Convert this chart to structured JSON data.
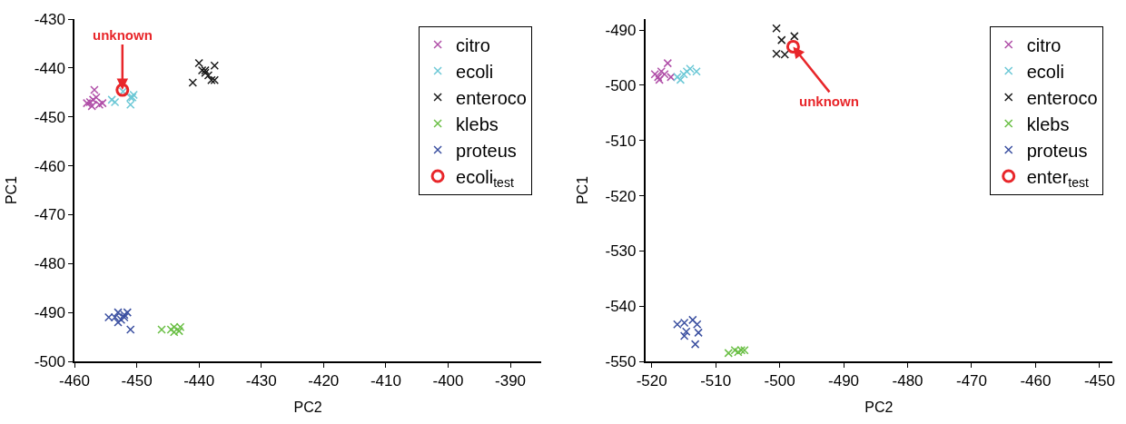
{
  "chart_data": [
    {
      "type": "scatter",
      "xlabel": "PC2",
      "ylabel": "PC1",
      "xlim": [
        -460,
        -385
      ],
      "ylim": [
        -500,
        -430
      ],
      "xticks": [
        -460,
        -450,
        -440,
        -430,
        -420,
        -410,
        -400,
        -390
      ],
      "yticks": [
        -500,
        -490,
        -480,
        -470,
        -460,
        -450,
        -440,
        -430
      ],
      "legend": "top right",
      "annotations": [
        {
          "text": "unknown",
          "x": -452.3,
          "y": -444.5
        }
      ],
      "series": [
        {
          "name": "citro",
          "color": "#b04fa8",
          "marker": "cross",
          "x": [
            -457.5,
            -457,
            -456.8,
            -456,
            -455.5,
            -457.2,
            -456.5,
            -458
          ],
          "values": [
            -447,
            -446.5,
            -444.5,
            -447.5,
            -447.2,
            -447.8,
            -446,
            -447.2
          ]
        },
        {
          "name": "ecoli",
          "color": "#6cc8d6",
          "marker": "cross",
          "x": [
            -454,
            -453.5,
            -451,
            -450.5,
            -451,
            -452.2,
            -450.7
          ],
          "values": [
            -446.5,
            -447,
            -447.5,
            -445.5,
            -446,
            -444.8,
            -446
          ]
        },
        {
          "name": "enteroco",
          "color": "#1a1a1a",
          "marker": "cross",
          "x": [
            -441,
            -440,
            -439.5,
            -439,
            -438.5,
            -437.5,
            -438,
            -437.5,
            -439
          ],
          "values": [
            -443,
            -439,
            -440.5,
            -441,
            -441.5,
            -439.5,
            -442.5,
            -442.5,
            -440.5
          ]
        },
        {
          "name": "klebs",
          "color": "#6abf45",
          "marker": "cross",
          "x": [
            -446,
            -444.5,
            -444,
            -443,
            -444,
            -443.2
          ],
          "values": [
            -493.5,
            -493.5,
            -494,
            -493,
            -493,
            -493.8
          ]
        },
        {
          "name": "proteus",
          "color": "#3a4fa0",
          "marker": "cross",
          "x": [
            -454.5,
            -453,
            -452,
            -451.5,
            -453,
            -452.5,
            -452,
            -451,
            -453.5
          ],
          "values": [
            -491,
            -490,
            -490.5,
            -490,
            -492,
            -491.5,
            -491,
            -493.5,
            -491
          ]
        },
        {
          "name": "ecoli$_{test}$",
          "color": "#e8262a",
          "marker": "circle",
          "x": [
            -452.3
          ],
          "values": [
            -444.5
          ]
        }
      ]
    },
    {
      "type": "scatter",
      "xlabel": "PC2",
      "ylabel": "PC1",
      "xlim": [
        -521,
        -448
      ],
      "ylim": [
        -550,
        -488
      ],
      "xticks": [
        -520,
        -510,
        -500,
        -490,
        -480,
        -470,
        -460,
        -450
      ],
      "yticks": [
        -550,
        -540,
        -530,
        -520,
        -510,
        -500,
        -490
      ],
      "legend": "top right",
      "annotations": [
        {
          "text": "unknown",
          "x": -497.9,
          "y": -493
        }
      ],
      "series": [
        {
          "name": "citro",
          "color": "#b04fa8",
          "marker": "cross",
          "x": [
            -519.5,
            -519,
            -518.5,
            -518,
            -517.5,
            -518.8,
            -517
          ],
          "values": [
            -498,
            -498.5,
            -497.5,
            -498,
            -496,
            -499,
            -498.5
          ]
        },
        {
          "name": "ecoli",
          "color": "#6cc8d6",
          "marker": "cross",
          "x": [
            -516,
            -515,
            -514.5,
            -513,
            -515.5,
            -514
          ],
          "values": [
            -498.5,
            -498,
            -497.5,
            -497.5,
            -499,
            -497
          ]
        },
        {
          "name": "enteroco",
          "color": "#1a1a1a",
          "marker": "cross",
          "x": [
            -500.5,
            -499.7,
            -497.7,
            -500.5,
            -499.2
          ],
          "values": [
            -489.7,
            -491.8,
            -491.1,
            -494.3,
            -494.4
          ]
        },
        {
          "name": "klebs",
          "color": "#6abf45",
          "marker": "cross",
          "x": [
            -508,
            -507,
            -506,
            -506.5,
            -505.5
          ],
          "values": [
            -548.5,
            -548,
            -548,
            -548.3,
            -548
          ]
        },
        {
          "name": "proteus",
          "color": "#3a4fa0",
          "marker": "cross",
          "x": [
            -516,
            -514.9,
            -513.6,
            -512.9,
            -514.6,
            -512.7,
            -513.2,
            -514.9
          ],
          "values": [
            -543.3,
            -543,
            -542.5,
            -543.3,
            -544.6,
            -544.8,
            -546.9,
            -545.4
          ]
        },
        {
          "name": "enter$_{test}$",
          "color": "#e8262a",
          "marker": "circle",
          "x": [
            -497.9
          ],
          "values": [
            -493
          ]
        }
      ]
    }
  ]
}
